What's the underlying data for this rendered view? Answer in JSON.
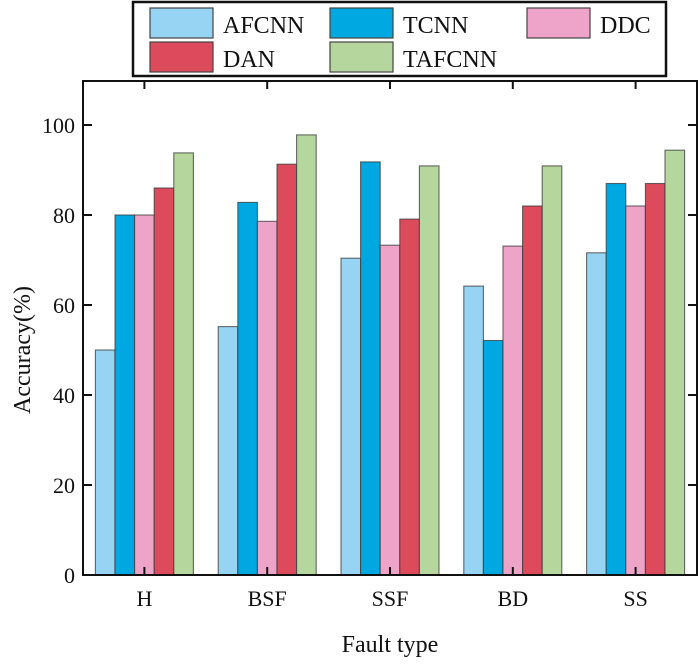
{
  "chart_data": {
    "type": "bar",
    "title": "",
    "xlabel": "Fault type",
    "ylabel": "Accuracy(%)",
    "ylim": [
      0,
      110
    ],
    "yticks": [
      0,
      20,
      40,
      60,
      80,
      100
    ],
    "grid": false,
    "legend_position": "top",
    "categories": [
      "H",
      "BSF",
      "SSF",
      "BD",
      "SS"
    ],
    "series": [
      {
        "name": "AFCNN",
        "color": "#97d3f3",
        "values": [
          50,
          55.2,
          70.4,
          64.2,
          71.6
        ]
      },
      {
        "name": "TCNN",
        "color": "#00a8e1",
        "values": [
          80,
          82.8,
          91.8,
          52.1,
          87
        ]
      },
      {
        "name": "DDC",
        "color": "#eea3c8",
        "values": [
          80,
          78.6,
          73.3,
          73.1,
          82
        ]
      },
      {
        "name": "DAN",
        "color": "#dc4a5c",
        "values": [
          86,
          91.3,
          79.1,
          82,
          87
        ]
      },
      {
        "name": "TAFCNN",
        "color": "#b5d69c",
        "values": [
          93.8,
          97.8,
          90.9,
          90.9,
          94.4
        ]
      }
    ]
  }
}
